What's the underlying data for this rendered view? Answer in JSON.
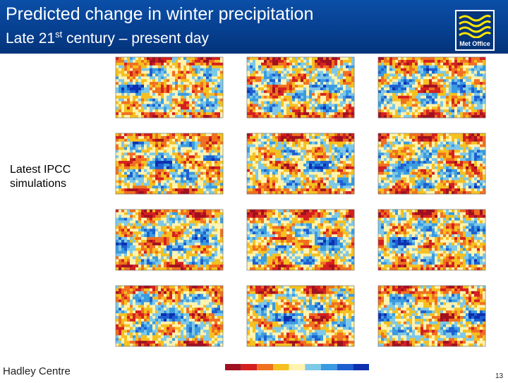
{
  "slide": {
    "title": "Predicted change in winter precipitation",
    "subtitle_pre": "Late 21",
    "subtitle_sup": "st",
    "subtitle_post": " century – present day",
    "side_label_line1": "Latest IPCC",
    "side_label_line2": "simulations",
    "footer_left": "Hadley Centre",
    "page_number": "13"
  },
  "logo": {
    "text": "Met Office"
  },
  "colors": {
    "header_blue": "#0b4fa8",
    "legend": [
      "#a01020",
      "#d42020",
      "#f07020",
      "#f5c020",
      "#fff3b0",
      "#7ec8e8",
      "#3a9be0",
      "#1e5fd0",
      "#0d2fb0"
    ]
  },
  "grid": {
    "rows": 4,
    "cols": 3
  }
}
